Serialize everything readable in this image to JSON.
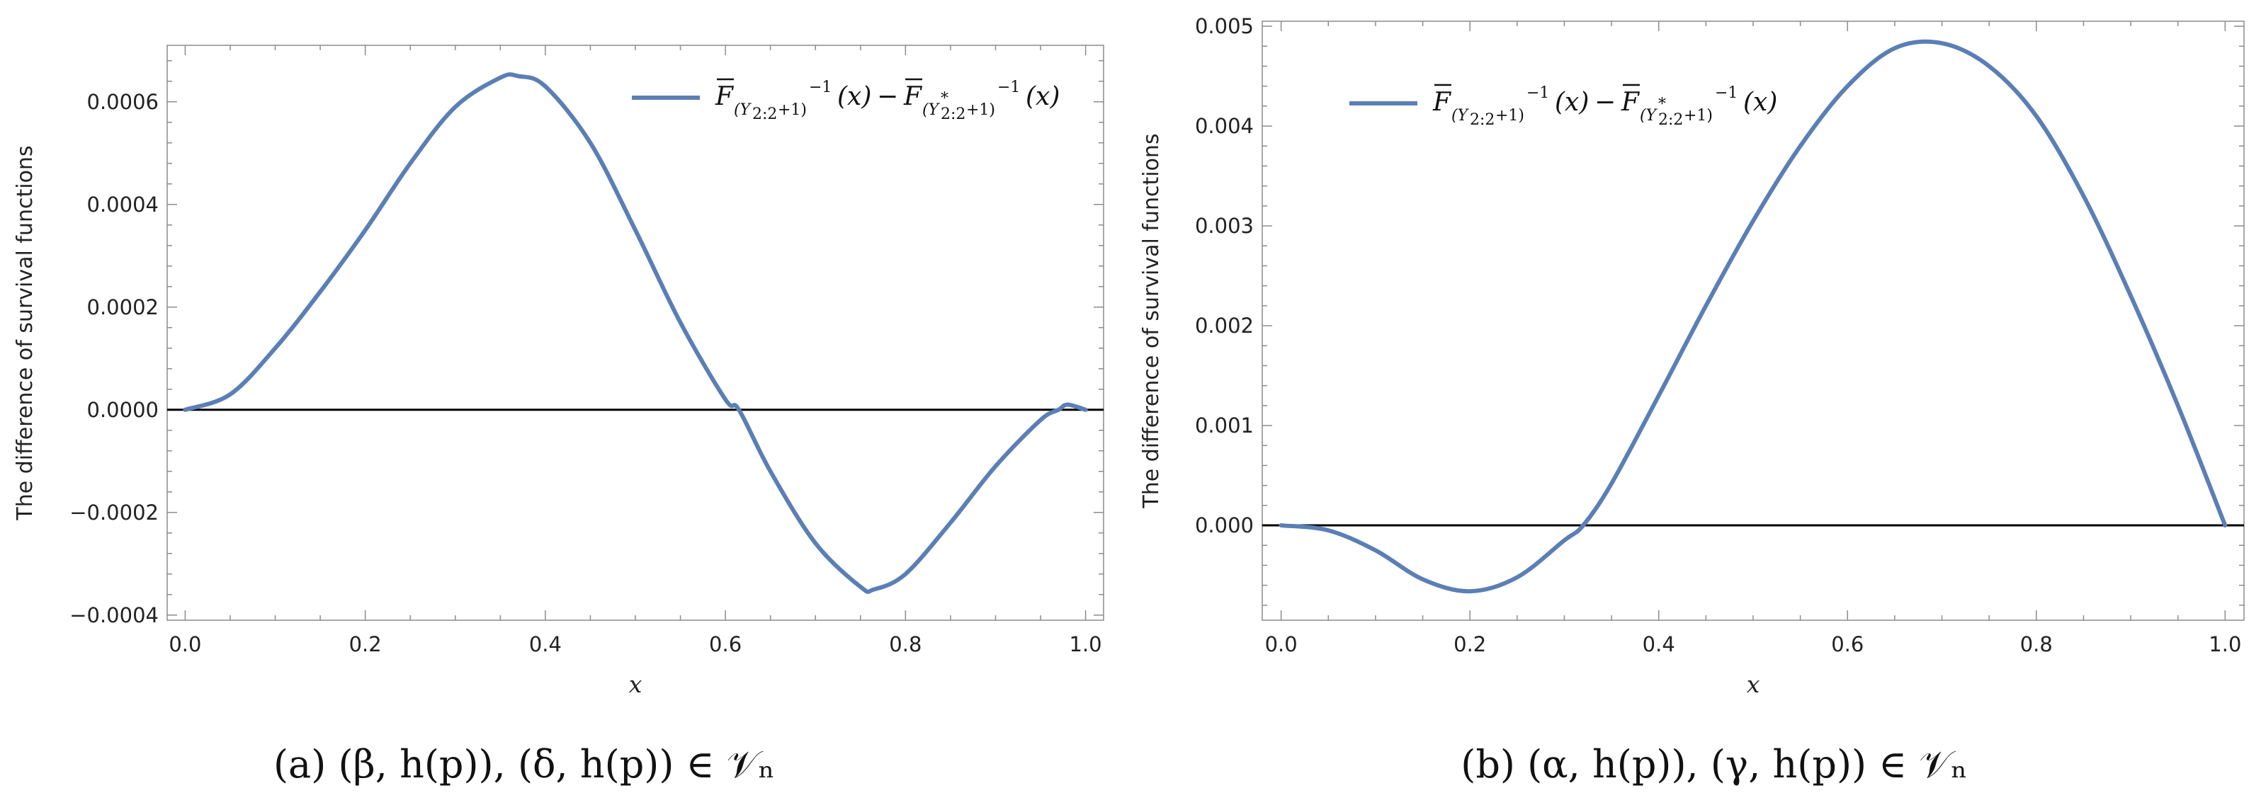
{
  "chart_data": [
    {
      "type": "line",
      "panel": "a",
      "xlabel": "x",
      "ylabel": "The difference of survival functions",
      "xlim": [
        -0.02,
        1.02
      ],
      "ylim": [
        -0.00041,
        0.00071
      ],
      "xticks": [
        0.0,
        0.2,
        0.4,
        0.6,
        0.8,
        1.0
      ],
      "xtick_labels": [
        "0.0",
        "0.2",
        "0.4",
        "0.6",
        "0.8",
        "1.0"
      ],
      "yticks": [
        -0.0004,
        -0.0002,
        0.0,
        0.0002,
        0.0004,
        0.0006
      ],
      "ytick_labels": [
        "−0.0004",
        "−0.0002",
        "0.0000",
        "0.0002",
        "0.0004",
        "0.0006"
      ],
      "grid": false,
      "legend": {
        "placement": "top-right",
        "entries": [
          {
            "name": "F̄_(Y2:2+1)^-1(x) − F̄_(Y*2:2+1)^-1(x)",
            "lhs_main": "F",
            "lhs_sub": "(Y",
            "lhs_sub2": "2:2",
            "lhs_sub3": "+1)",
            "lhs_sup": "−1",
            "lhs_arg": "(x)",
            "minus": "−",
            "rhs_main": "F",
            "rhs_sub": "(Y",
            "rhs_star": "*",
            "rhs_sub2": "2:2",
            "rhs_sub3": "+1)",
            "rhs_sup": "−1",
            "rhs_arg": "(x)"
          }
        ]
      },
      "series": [
        {
          "name": "F̄_(Y2:2+1)^-1(x) − F̄_(Y*2:2+1)^-1(x)",
          "color": "#5b7fb5",
          "x": [
            0.0,
            0.05,
            0.1,
            0.15,
            0.2,
            0.25,
            0.3,
            0.35,
            0.37,
            0.4,
            0.45,
            0.5,
            0.55,
            0.6,
            0.615,
            0.65,
            0.7,
            0.75,
            0.765,
            0.8,
            0.85,
            0.9,
            0.95,
            0.97,
            0.98,
            1.0
          ],
          "y": [
            0.0,
            3e-05,
            0.00012,
            0.00023,
            0.00035,
            0.00048,
            0.00059,
            0.000647,
            0.00065,
            0.00063,
            0.00052,
            0.00035,
            0.00017,
            2e-05,
            0.0,
            -0.00012,
            -0.00026,
            -0.000345,
            -0.00035,
            -0.00032,
            -0.00022,
            -0.00011,
            -2e-05,
            0.0,
            1e-05,
            0.0
          ]
        }
      ],
      "caption": "(a)  (β, h(p)), (δ, h(p)) ∈ 𝒱ₙ"
    },
    {
      "type": "line",
      "panel": "b",
      "xlabel": "x",
      "ylabel": "The difference of survival functions",
      "xlim": [
        -0.02,
        1.02
      ],
      "ylim": [
        -0.00095,
        0.00505
      ],
      "xticks": [
        0.0,
        0.2,
        0.4,
        0.6,
        0.8,
        1.0
      ],
      "xtick_labels": [
        "0.0",
        "0.2",
        "0.4",
        "0.6",
        "0.8",
        "1.0"
      ],
      "yticks": [
        0.0,
        0.001,
        0.002,
        0.003,
        0.004,
        0.005
      ],
      "ytick_labels": [
        "0.000",
        "0.001",
        "0.002",
        "0.003",
        "0.004",
        "0.005"
      ],
      "grid": false,
      "legend": {
        "placement": "top-left",
        "entries": [
          {
            "name": "F̄_(Y2:2+1)^-1(x) − F̄_(Y*2:2+1)^-1(x)",
            "lhs_main": "F",
            "lhs_sub": "(Y",
            "lhs_sub2": "2:2",
            "lhs_sub3": "+1)",
            "lhs_sup": "−1",
            "lhs_arg": "(x)",
            "minus": "−",
            "rhs_main": "F",
            "rhs_sub": "(Y",
            "rhs_star": "*",
            "rhs_sub2": "2:2",
            "rhs_sub3": "+1)",
            "rhs_sup": "−1",
            "rhs_arg": "(x)"
          }
        ]
      },
      "series": [
        {
          "name": "F̄_(Y2:2+1)^-1(x) − F̄_(Y*2:2+1)^-1(x)",
          "color": "#5b7fb5",
          "x": [
            0.0,
            0.05,
            0.1,
            0.15,
            0.2,
            0.25,
            0.3,
            0.32,
            0.35,
            0.4,
            0.45,
            0.5,
            0.55,
            0.6,
            0.65,
            0.7,
            0.75,
            0.8,
            0.85,
            0.9,
            0.95,
            1.0
          ],
          "y": [
            0.0,
            -5e-05,
            -0.00025,
            -0.00054,
            -0.00066,
            -0.00052,
            -0.00015,
            0.0,
            0.00042,
            0.0013,
            0.0022,
            0.00305,
            0.0038,
            0.0044,
            0.00478,
            0.00483,
            0.0046,
            0.0041,
            0.0033,
            0.0023,
            0.0012,
            0.0
          ]
        }
      ],
      "caption": "(b)  (α, h(p)), (γ, h(p)) ∈ 𝒱ₙ"
    }
  ]
}
